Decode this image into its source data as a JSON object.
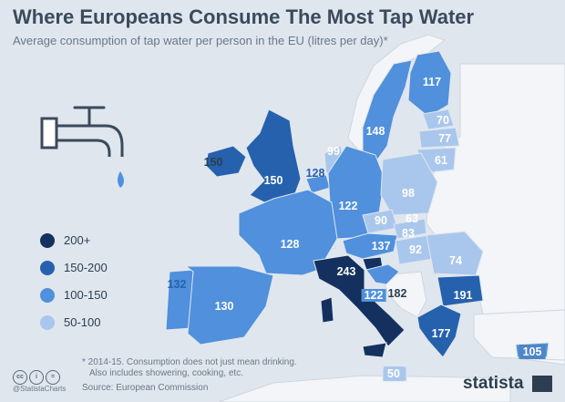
{
  "title": "Where Europeans Consume The Most Tap Water",
  "subtitle": "Average consumption of tap water per person in the EU (litres per day)*",
  "colors": {
    "c200": "#13305e",
    "c150": "#2661ad",
    "c100": "#5090dc",
    "c50": "#a9c7ec",
    "nonEU": "#f3f5f8",
    "sea": "#dfe6ee"
  },
  "legend": [
    {
      "label": "200+",
      "color": "#13305e"
    },
    {
      "label": "150-200",
      "color": "#2661ad"
    },
    {
      "label": "100-150",
      "color": "#5090dc"
    },
    {
      "label": "50-100",
      "color": "#a9c7ec"
    }
  ],
  "countries": [
    {
      "id": "ireland",
      "value": "150"
    },
    {
      "id": "uk",
      "value": "150"
    },
    {
      "id": "belgium",
      "value": "128"
    },
    {
      "id": "netherlands",
      "value": "99"
    },
    {
      "id": "germany",
      "value": "122"
    },
    {
      "id": "france",
      "value": "128"
    },
    {
      "id": "portugal",
      "value": "132"
    },
    {
      "id": "spain",
      "value": "130"
    },
    {
      "id": "italy",
      "value": "243"
    },
    {
      "id": "croatia",
      "value": "122"
    },
    {
      "id": "slovenia",
      "value": "182"
    },
    {
      "id": "austria",
      "value": "137"
    },
    {
      "id": "czech",
      "value": "90"
    },
    {
      "id": "slovakia",
      "value": "83"
    },
    {
      "id": "hungary",
      "value": "92"
    },
    {
      "id": "poland",
      "value": "98"
    },
    {
      "id": "romania",
      "value": "74"
    },
    {
      "id": "bulgaria",
      "value": "191"
    },
    {
      "id": "greece",
      "value": "177"
    },
    {
      "id": "cyprus",
      "value": "105"
    },
    {
      "id": "malta",
      "value": "50"
    },
    {
      "id": "sweden",
      "value": "148"
    },
    {
      "id": "finland",
      "value": "117"
    },
    {
      "id": "estonia",
      "value": "70"
    },
    {
      "id": "latvia",
      "value": "77"
    },
    {
      "id": "lithuania",
      "value": "61"
    },
    {
      "id": "luxembourg",
      "value": "63"
    }
  ],
  "footnote": "* 2014-15. Consumption does not just mean drinking.\nAlso includes showering, cooking, etc.",
  "source": "Source: European Commission",
  "handle": "@StatistaCharts",
  "brand": "statista"
}
